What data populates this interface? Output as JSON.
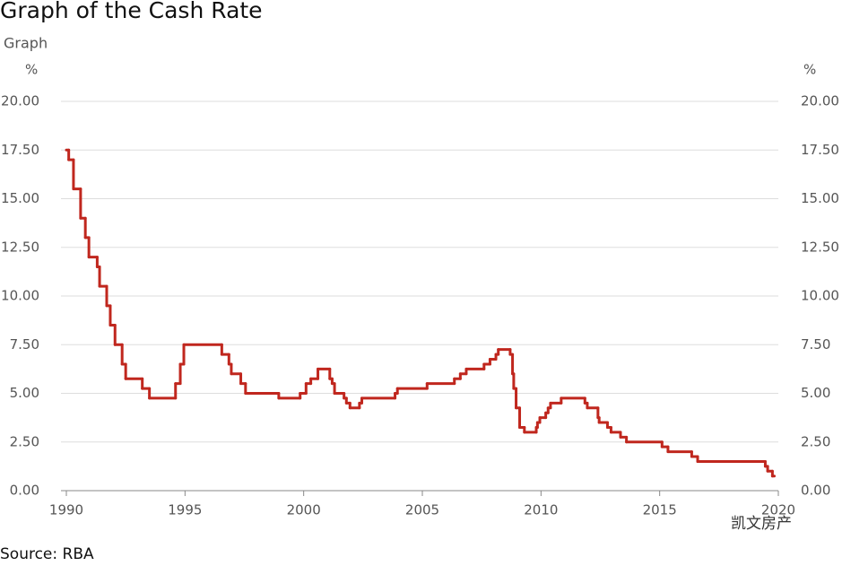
{
  "chart_data": {
    "type": "line",
    "title": "Graph of the Cash Rate",
    "subtitle": "Graph",
    "y_label": "%",
    "y2_label": "%",
    "source": "Source: RBA",
    "watermark": "凯文房产",
    "color": "#c0271e",
    "grid": true,
    "xlim": [
      1990,
      2020
    ],
    "xticks": [
      1990,
      1995,
      2000,
      2005,
      2010,
      2015,
      2020
    ],
    "ylim": [
      0,
      20
    ],
    "yticks": [
      {
        "value": 0,
        "label": "0.00"
      },
      {
        "value": 2.5,
        "label": "2.50"
      },
      {
        "value": 5,
        "label": "5.00"
      },
      {
        "value": 7.5,
        "label": "7.50"
      },
      {
        "value": 10,
        "label": "10.00"
      },
      {
        "value": 12.5,
        "label": "12.50"
      },
      {
        "value": 15,
        "label": "15.00"
      },
      {
        "value": 17.5,
        "label": "17.50"
      },
      {
        "value": 20,
        "label": "20.00"
      }
    ],
    "series": [
      {
        "name": "Cash Rate",
        "color": "#c0271e",
        "x": [
          1990.0,
          1990.1,
          1990.3,
          1990.6,
          1990.8,
          1990.95,
          1991.3,
          1991.4,
          1991.7,
          1991.85,
          1992.05,
          1992.35,
          1992.5,
          1993.2,
          1993.5,
          1994.6,
          1994.8,
          1994.95,
          1996.55,
          1996.85,
          1996.95,
          1997.35,
          1997.55,
          1998.95,
          1999.85,
          2000.1,
          2000.3,
          2000.6,
          2001.1,
          2001.2,
          2001.3,
          2001.7,
          2001.8,
          2001.95,
          2002.35,
          2002.45,
          2003.85,
          2003.95,
          2005.2,
          2006.35,
          2006.6,
          2006.85,
          2007.6,
          2007.85,
          2008.1,
          2008.2,
          2008.7,
          2008.8,
          2008.85,
          2008.95,
          2009.1,
          2009.3,
          2009.8,
          2009.85,
          2009.95,
          2010.2,
          2010.3,
          2010.4,
          2010.85,
          2011.85,
          2011.95,
          2012.4,
          2012.45,
          2012.8,
          2012.95,
          2013.35,
          2013.6,
          2015.1,
          2015.35,
          2016.35,
          2016.6,
          2019.45,
          2019.55,
          2019.75
        ],
        "values": [
          17.5,
          17,
          15.5,
          14,
          13,
          12,
          11.5,
          10.5,
          9.5,
          8.5,
          7.5,
          6.5,
          5.75,
          5.25,
          4.75,
          5.5,
          6.5,
          7.5,
          7,
          6.5,
          6,
          5.5,
          5,
          4.75,
          5,
          5.5,
          5.75,
          6.25,
          5.75,
          5.5,
          5,
          4.75,
          4.5,
          4.25,
          4.5,
          4.75,
          5,
          5.25,
          5.5,
          5.75,
          6,
          6.25,
          6.5,
          6.75,
          7,
          7.25,
          7,
          6,
          5.25,
          4.25,
          3.25,
          3,
          3.25,
          3.5,
          3.75,
          4,
          4.25,
          4.5,
          4.75,
          4.5,
          4.25,
          3.75,
          3.5,
          3.25,
          3,
          2.75,
          2.5,
          2.25,
          2,
          1.75,
          1.5,
          1.25,
          1,
          0.75
        ]
      }
    ]
  }
}
